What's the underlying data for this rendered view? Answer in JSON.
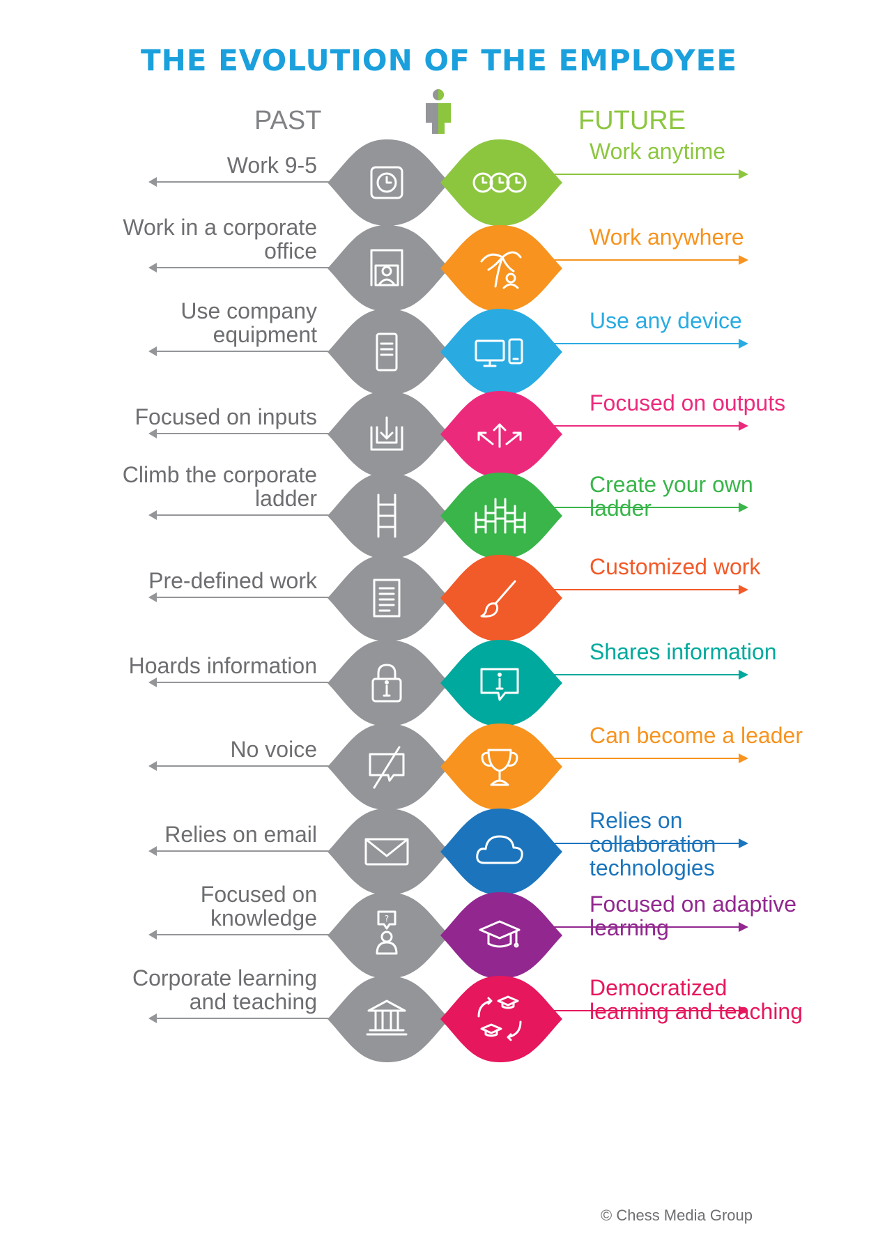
{
  "title": "THE EVOLUTION OF THE EMPLOYEE",
  "columns": {
    "past": "PAST",
    "future": "FUTURE"
  },
  "colors": {
    "title": "#1aa0dc",
    "past": "#939598",
    "past_text": "#6d6e71",
    "future_head": "#8cc63f"
  },
  "rows": [
    {
      "past": "Work 9-5",
      "future": "Work anytime",
      "past_icon": "clock-icon",
      "future_icon": "three-clocks-icon",
      "color": "#8cc63f"
    },
    {
      "past": "Work in a corporate office",
      "future": "Work anywhere",
      "past_icon": "office-icon",
      "future_icon": "palm-tree-icon",
      "color": "#f7931e"
    },
    {
      "past": "Use company equipment",
      "future": "Use any device",
      "past_icon": "server-icon",
      "future_icon": "devices-icon",
      "color": "#29abe2"
    },
    {
      "past": "Focused on inputs",
      "future": "Focused on outputs",
      "past_icon": "inbox-icon",
      "future_icon": "outputs-arrows-icon",
      "color": "#ec2a7c"
    },
    {
      "past": "Climb the corporate ladder",
      "future": "Create your own ladder",
      "past_icon": "ladder-icon",
      "future_icon": "ladders-icon",
      "color": "#39b54a"
    },
    {
      "past": "Pre-defined work",
      "future": "Customized work",
      "past_icon": "document-icon",
      "future_icon": "paintbrush-icon",
      "color": "#f15a29"
    },
    {
      "past": "Hoards information",
      "future": "Shares information",
      "past_icon": "lock-icon",
      "future_icon": "info-bubble-icon",
      "color": "#00a99d"
    },
    {
      "past": "No voice",
      "future": "Can become a leader",
      "past_icon": "no-speech-icon",
      "future_icon": "trophy-icon",
      "color": "#f7931e"
    },
    {
      "past": "Relies on email",
      "future": "Relies on collaboration technologies",
      "past_icon": "envelope-icon",
      "future_icon": "cloud-icon",
      "color": "#1c75bc"
    },
    {
      "past": "Focused on knowledge",
      "future": "Focused on adaptive learning",
      "past_icon": "question-person-icon",
      "future_icon": "graduation-cap-icon",
      "color": "#92278f"
    },
    {
      "past": "Corporate learning and teaching",
      "future": "Democratized learning and teaching",
      "past_icon": "institution-icon",
      "future_icon": "caps-cycle-icon",
      "color": "#e6175c"
    }
  ],
  "credit": "© Chess Media Group"
}
